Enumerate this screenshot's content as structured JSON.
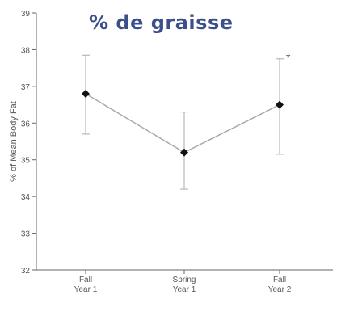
{
  "chart_data": {
    "type": "line",
    "overlay_title": "% de graisse",
    "ylabel": "% of Mean Body Fat",
    "xlabel": "",
    "ylim": [
      32,
      39
    ],
    "yticks": [
      32,
      33,
      34,
      35,
      36,
      37,
      38,
      39
    ],
    "categories": [
      {
        "line1": "Fall",
        "line2": "Year 1"
      },
      {
        "line1": "Spring",
        "line2": "Year 1"
      },
      {
        "line1": "Fall",
        "line2": "Year 2"
      }
    ],
    "series": [
      {
        "values": [
          36.8,
          35.2,
          36.5
        ],
        "error_upper": [
          37.85,
          36.3,
          37.75
        ],
        "error_lower": [
          35.7,
          34.2,
          35.15
        ]
      }
    ],
    "annotations": [
      {
        "text": "*",
        "category_index": 2
      }
    ],
    "grid": false,
    "colors": {
      "line": "#aaaaaa",
      "marker": "#111111",
      "error": "#aaaaaa",
      "axis": "#666666",
      "title": "#3b4f8c"
    }
  }
}
